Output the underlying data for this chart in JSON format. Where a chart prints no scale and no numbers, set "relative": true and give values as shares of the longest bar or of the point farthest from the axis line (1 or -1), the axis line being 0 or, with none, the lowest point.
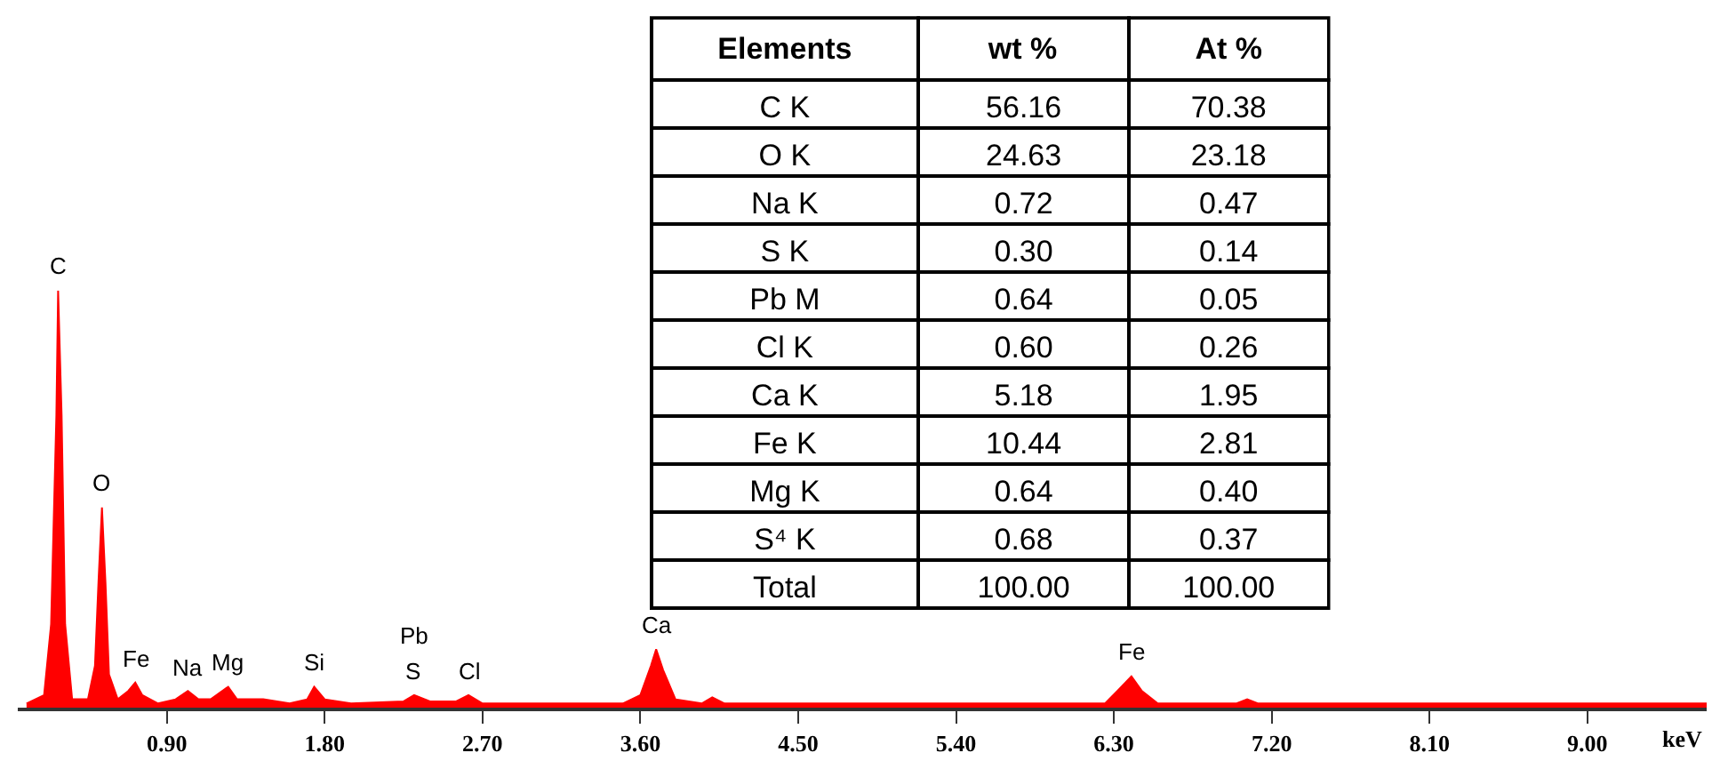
{
  "chart_data": [
    {
      "type": "area",
      "relative": true,
      "color": "#ff0000",
      "xlabel": "keV",
      "xlim": [
        0.05,
        9.68
      ],
      "xticks": [
        {
          "value": 0.9,
          "label": "0.90"
        },
        {
          "value": 1.8,
          "label": "1.80"
        },
        {
          "value": 2.7,
          "label": "2.70"
        },
        {
          "value": 3.6,
          "label": "3.60"
        },
        {
          "value": 4.5,
          "label": "4.50"
        },
        {
          "value": 5.4,
          "label": "5.40"
        },
        {
          "value": 6.3,
          "label": "6.30"
        },
        {
          "value": 7.2,
          "label": "7.20"
        },
        {
          "value": 8.1,
          "label": "8.10"
        },
        {
          "value": 9.0,
          "label": "9.00"
        }
      ],
      "x": [
        0.1,
        0.2,
        0.24,
        0.27,
        0.28,
        0.3,
        0.32,
        0.36,
        0.45,
        0.49,
        0.51,
        0.53,
        0.55,
        0.57,
        0.62,
        0.68,
        0.72,
        0.76,
        0.85,
        0.95,
        1.02,
        1.08,
        1.15,
        1.25,
        1.3,
        1.45,
        1.6,
        1.7,
        1.74,
        1.8,
        1.95,
        2.25,
        2.31,
        2.4,
        2.55,
        2.62,
        2.7,
        3.0,
        3.5,
        3.6,
        3.66,
        3.69,
        3.73,
        3.8,
        3.95,
        4.01,
        4.08,
        5.0,
        6.25,
        6.32,
        6.4,
        6.46,
        6.55,
        7.0,
        7.06,
        7.12,
        9.68
      ],
      "values": [
        0.01,
        0.03,
        0.2,
        0.7,
        1.0,
        0.7,
        0.2,
        0.02,
        0.02,
        0.1,
        0.3,
        0.48,
        0.3,
        0.08,
        0.02,
        0.04,
        0.06,
        0.03,
        0.01,
        0.02,
        0.04,
        0.02,
        0.02,
        0.05,
        0.02,
        0.02,
        0.01,
        0.02,
        0.05,
        0.02,
        0.01,
        0.015,
        0.03,
        0.015,
        0.015,
        0.03,
        0.01,
        0.01,
        0.01,
        0.03,
        0.1,
        0.14,
        0.09,
        0.02,
        0.01,
        0.025,
        0.01,
        0.01,
        0.01,
        0.04,
        0.075,
        0.04,
        0.01,
        0.01,
        0.02,
        0.01,
        0.01
      ],
      "annotations": [
        {
          "text": "C",
          "x": 0.28,
          "y": 1.0
        },
        {
          "text": "O",
          "x": 0.53,
          "y": 0.48
        },
        {
          "text": "Fe",
          "x": 0.72,
          "y": 0.06
        },
        {
          "text": "Na",
          "x": 1.02,
          "y": 0.04
        },
        {
          "text": "Mg",
          "x": 1.25,
          "y": 0.05
        },
        {
          "text": "Si",
          "x": 1.74,
          "y": 0.05
        },
        {
          "text": "S",
          "x": 2.31,
          "y": 0.03
        },
        {
          "text": "Pb",
          "x": 2.31,
          "y": 0.03
        },
        {
          "text": "Cl",
          "x": 2.62,
          "y": 0.03
        },
        {
          "text": "Ca",
          "x": 3.69,
          "y": 0.14
        },
        {
          "text": "Fe",
          "x": 6.4,
          "y": 0.075
        }
      ]
    },
    {
      "type": "other",
      "categories": [
        "Elements",
        "wt %",
        "At %"
      ],
      "y_categories": [
        "C K",
        "O K",
        "Na K",
        "S K",
        "Pb M",
        "Cl K",
        "Ca K",
        "Fe K",
        "Mg K",
        "S⁴ K",
        "Total"
      ],
      "cell_labels": [
        [
          "56.16",
          "70.38"
        ],
        [
          "24.63",
          "23.18"
        ],
        [
          "0.72",
          "0.47"
        ],
        [
          "0.30",
          "0.14"
        ],
        [
          "0.64",
          "0.05"
        ],
        [
          "0.60",
          "0.26"
        ],
        [
          "5.18",
          "1.95"
        ],
        [
          "10.44",
          "2.81"
        ],
        [
          "0.64",
          "0.40"
        ],
        [
          "0.68",
          "0.37"
        ],
        [
          "100.00",
          "100.00"
        ]
      ]
    }
  ]
}
